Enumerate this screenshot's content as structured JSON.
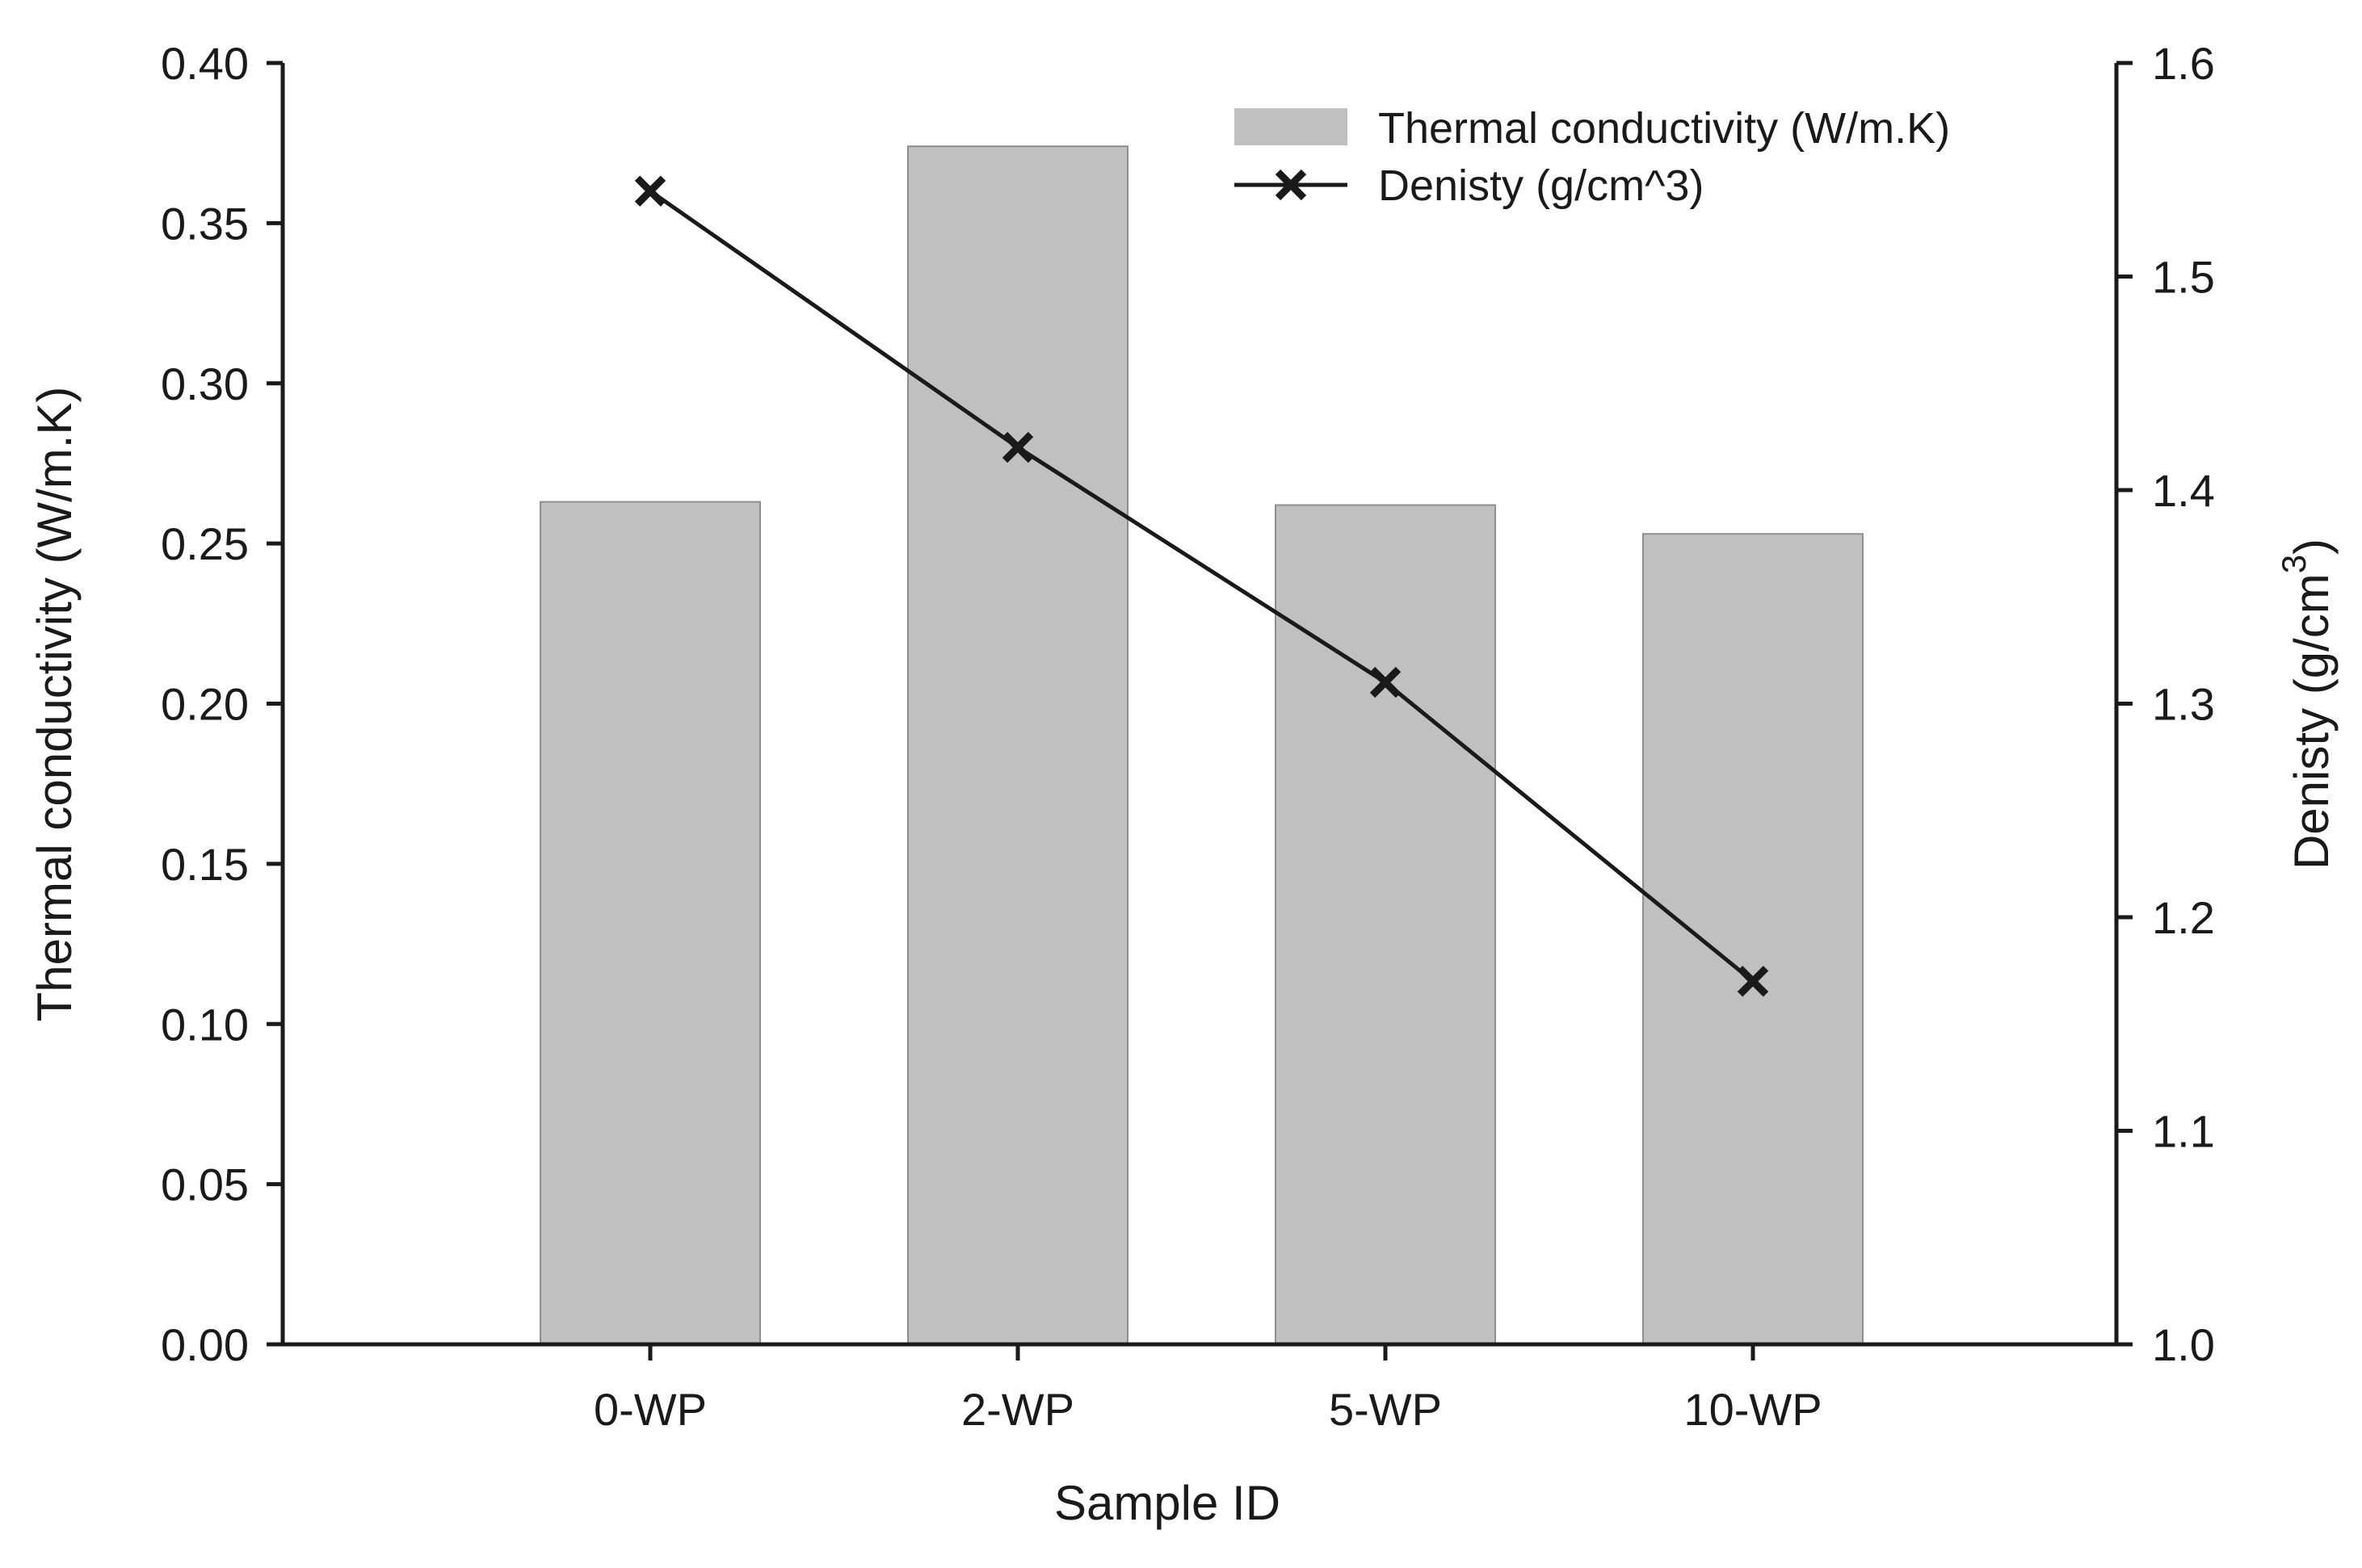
{
  "chart_data": {
    "type": "bar+line",
    "title": "",
    "xlabel": "Sample ID",
    "ylabel_left": "Thermal conductivity (W/m.K)",
    "ylabel_right": {
      "text": "Denisty (g/cm",
      "superscript": "3",
      "close": ")"
    },
    "categories": [
      "0-WP",
      "2-WP",
      "5-WP",
      "10-WP"
    ],
    "series": [
      {
        "name": "Thermal conductivity (W/m.K)",
        "kind": "bar",
        "axis": "left",
        "values": [
          0.263,
          0.374,
          0.262,
          0.253
        ],
        "color": "#c0c0c0"
      },
      {
        "name": "Denisty (g/cm^3)",
        "kind": "line",
        "axis": "right",
        "marker": "x",
        "values": [
          1.54,
          1.42,
          1.31,
          1.17
        ],
        "color": "#1a1a1a"
      }
    ],
    "ylim_left": [
      0,
      0.4
    ],
    "yticks_left": [
      "0.00",
      "0.05",
      "0.10",
      "0.15",
      "0.20",
      "0.25",
      "0.30",
      "0.35",
      "0.40"
    ],
    "ylim_right": [
      1.0,
      1.6
    ],
    "yticks_right": [
      "1.0",
      "1.1",
      "1.2",
      "1.3",
      "1.4",
      "1.5",
      "1.6"
    ],
    "grid": false,
    "legend_position": "top-right"
  }
}
